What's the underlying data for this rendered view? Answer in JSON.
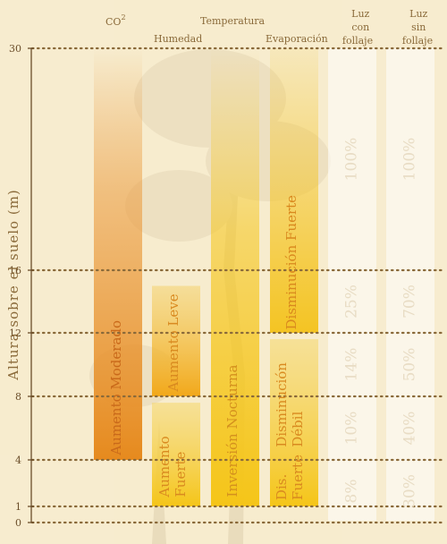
{
  "chart_data": {
    "type": "bar",
    "ylabel": "Altura sobre el suelo (m)",
    "yticks": [
      0,
      1,
      4,
      8,
      12,
      16,
      30
    ],
    "ylim": [
      0,
      30
    ],
    "grid": true,
    "headers": {
      "co2": "CO",
      "co2_sup": "2",
      "temperatura": "Temperatura",
      "humedad": "Humedad",
      "evaporacion": "Evaporación",
      "luz_con_1": "Luz",
      "luz_con_2": "con",
      "luz_con_3": "follaje",
      "luz_sin_1": "Luz",
      "luz_sin_2": "sin",
      "luz_sin_3": "follaje"
    },
    "bars": [
      {
        "column": "co2",
        "from": 4,
        "to": 30,
        "lines": [
          "Aumento Moderado"
        ],
        "color": "#e68a1e"
      },
      {
        "column": "humedad",
        "from": 8,
        "to": 15,
        "lines": [
          "Aumento Leve"
        ],
        "color": "#f2b31a"
      },
      {
        "column": "humedad",
        "from": 1,
        "to": 7.6,
        "lines": [
          "Aumento",
          "Fuerte"
        ],
        "color": "#f5c518"
      },
      {
        "column": "temperatura",
        "from": 1,
        "to": 30,
        "lines": [
          "Inversión Nocturna"
        ],
        "color": "#f5c518"
      },
      {
        "column": "evaporacion",
        "from": 12,
        "to": 30,
        "lines": [
          "Disminución Fuerte"
        ],
        "color": "#f4c21a"
      },
      {
        "column": "evaporacion",
        "from": 1,
        "to": 11.6,
        "lines": [
          "Dis.",
          "Fuerte"
        ],
        "color": "#f5c518",
        "lines_lower": true
      },
      {
        "column": "evaporacion",
        "from": 1,
        "to": 11.6,
        "lines": [
          "Disminución",
          "Débil"
        ],
        "color": "#f5c518"
      }
    ],
    "light_with_foliage": [
      {
        "from": 16,
        "to": 30,
        "value": "100%"
      },
      {
        "from": 12,
        "to": 16,
        "value": "25%"
      },
      {
        "from": 8,
        "to": 12,
        "value": "14%"
      },
      {
        "from": 4,
        "to": 8,
        "value": "10%"
      },
      {
        "from": 0,
        "to": 4,
        "value": "8%"
      }
    ],
    "light_without_foliage": [
      {
        "from": 16,
        "to": 30,
        "value": "100%"
      },
      {
        "from": 12,
        "to": 16,
        "value": "70%"
      },
      {
        "from": 8,
        "to": 12,
        "value": "50%"
      },
      {
        "from": 4,
        "to": 8,
        "value": "40%"
      },
      {
        "from": 0,
        "to": 4,
        "value": "30%"
      }
    ]
  }
}
